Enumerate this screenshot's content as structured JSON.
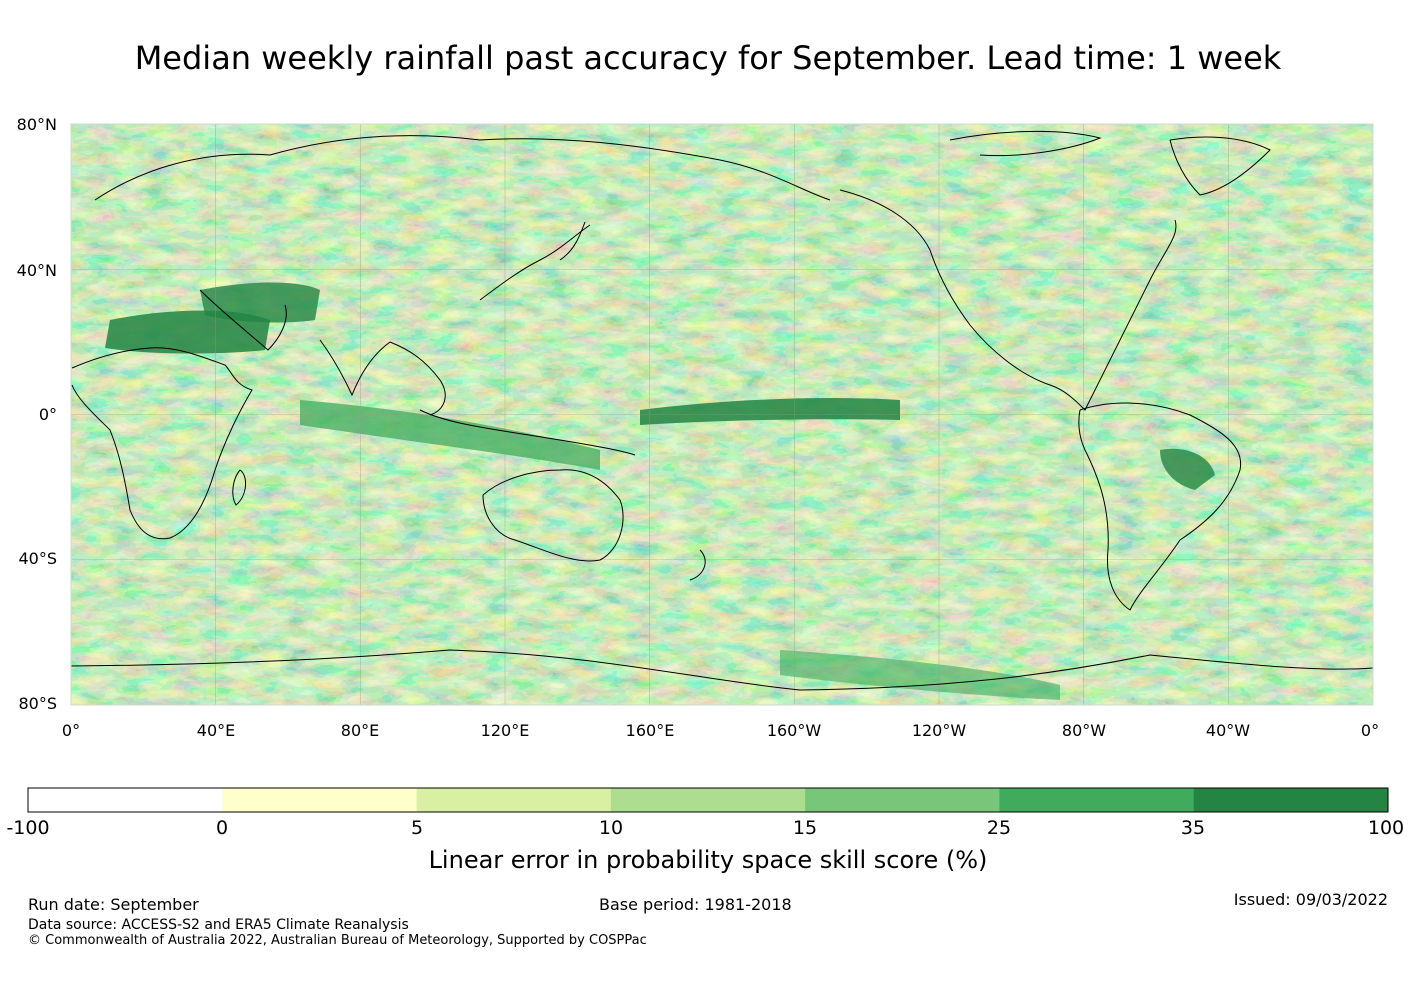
{
  "title": "Median weekly rainfall past accuracy for September. Lead time: 1 week",
  "map": {
    "lat_labels": [
      "80°N",
      "40°N",
      "0°",
      "40°S",
      "80°S"
    ],
    "lon_labels": [
      "0°",
      "40°E",
      "80°E",
      "120°E",
      "160°E",
      "160°W",
      "120°W",
      "80°W",
      "40°W",
      "0°"
    ],
    "grid_color": "#8c9c8c",
    "coast_color": "#000000"
  },
  "colorbar": {
    "label": "Linear error in probability space skill score (%)",
    "ticks": [
      "-100",
      "0",
      "5",
      "10",
      "15",
      "25",
      "35",
      "100"
    ],
    "colors": [
      "#ffffff",
      "#ffffcc",
      "#d9f0a3",
      "#addd8e",
      "#78c679",
      "#41ab5d",
      "#238443"
    ]
  },
  "footer": {
    "run_date": "Run date: September",
    "base_period": "Base period: 1981-2018",
    "issued": "Issued: 09/03/2022",
    "data_source": "Data source: ACCESS-S2 and ERA5 Climate Reanalysis",
    "copyright": "© Commonwealth of Australia 2022, Australian Bureau of Meteorology, Supported by COSPPac"
  }
}
